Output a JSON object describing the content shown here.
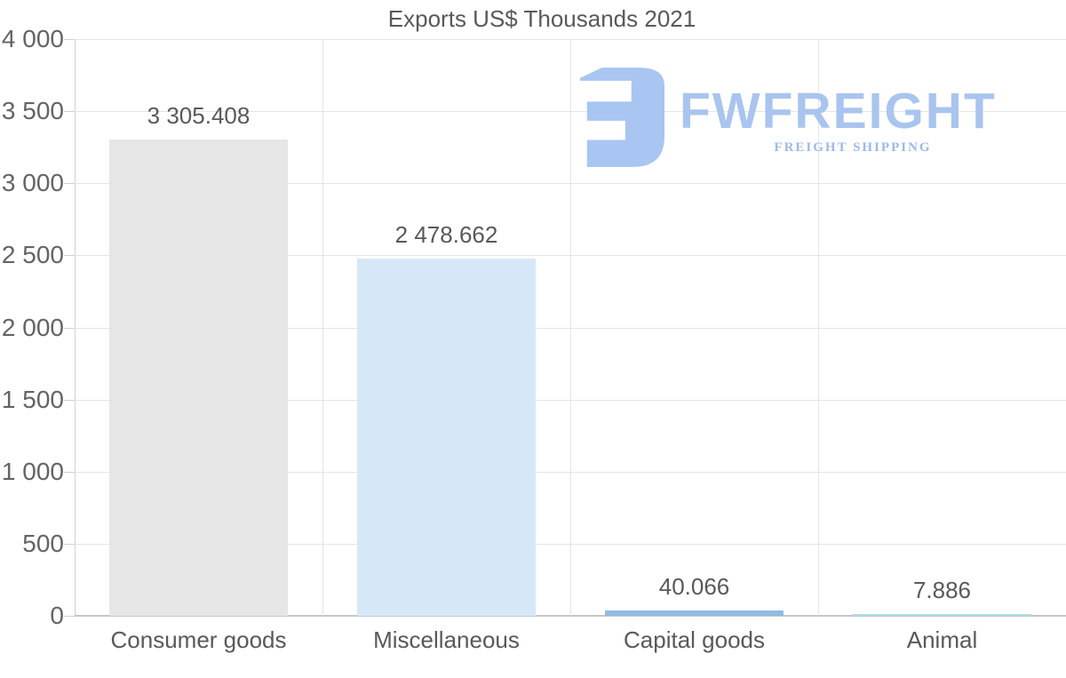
{
  "logo": {
    "brand": "FWFREIGHT",
    "tagline": "FREIGHT SHIPPING",
    "icon_color": "#a9c5f1",
    "brand_color": "#a9c4ee",
    "tagline_color": "#9db9e8"
  },
  "chart_data": {
    "type": "bar",
    "title": "Exports US$ Thousands 2021",
    "categories": [
      "Consumer goods",
      "Miscellaneous",
      "Capital goods",
      "Animal"
    ],
    "values": [
      3305.408,
      2478.662,
      40.066,
      7.886
    ],
    "value_labels": [
      "3 305.408",
      "2 478.662",
      "40.066",
      "7.886"
    ],
    "bar_colors": [
      "#e6e6e6",
      "#d6e8f8",
      "#93bae5",
      "#aedfe1"
    ],
    "xlabel": "",
    "ylabel": "",
    "ylim": [
      0,
      4000
    ],
    "yticks": [
      0,
      500,
      1000,
      1500,
      2000,
      2500,
      3000,
      3500,
      4000
    ],
    "ytick_labels": [
      "0",
      "500",
      "1 000",
      "1 500",
      "2 000",
      "2 500",
      "3 000",
      "3 500",
      "4 000"
    ],
    "grid": true,
    "legend": false,
    "text_color": "#595959",
    "grid_color": "#e5e5e5",
    "axis_color": "#d0d0d0"
  }
}
